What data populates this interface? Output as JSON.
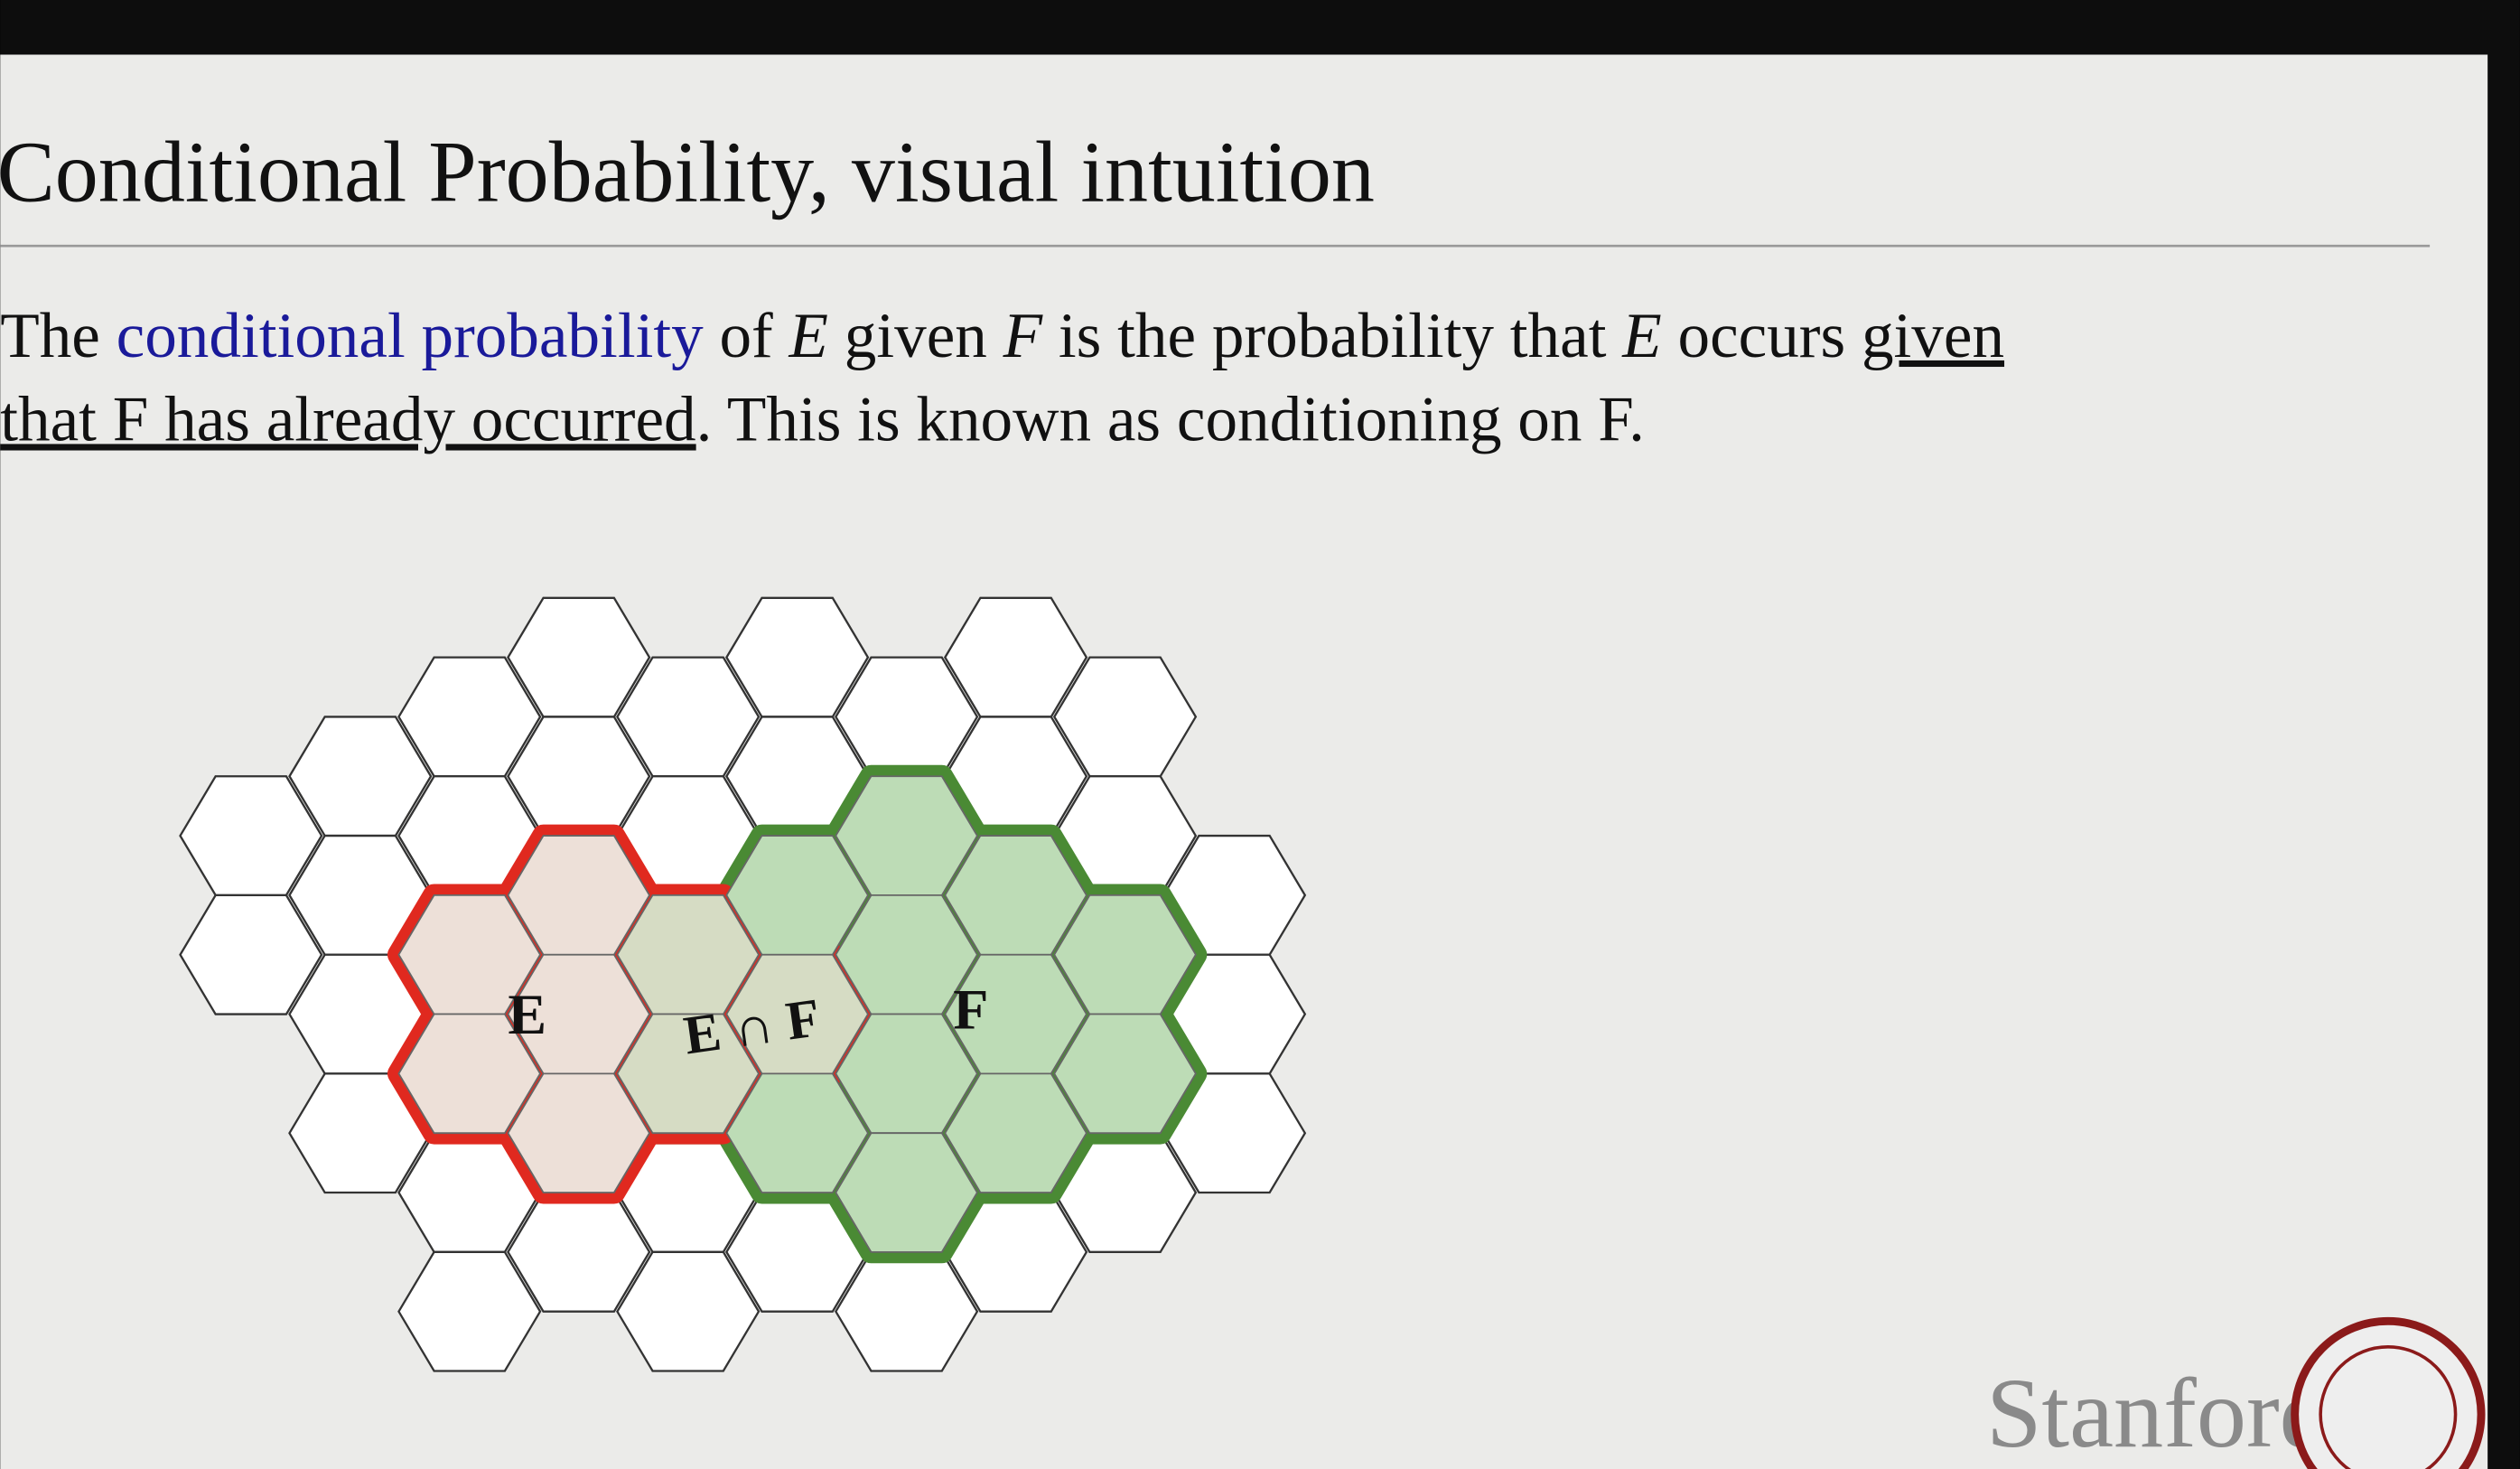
{
  "slide": {
    "title": "Conditional Probability, visual intuition",
    "paragraph": {
      "lines": [
        [
          "The ",
          "conditional probability",
          " of ",
          "E",
          " given ",
          "F",
          " is the probability that ",
          "E",
          " occurs ",
          "given"
        ],
        [
          "that F has already occurred",
          ". This is known as conditioning on F."
        ]
      ]
    },
    "diagram": {
      "labels": [
        "E",
        "E ∩ F",
        "F"
      ]
    },
    "logo": "Stanford"
  }
}
